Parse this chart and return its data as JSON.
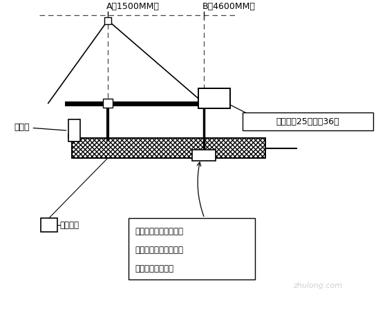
{
  "bg_color": "#ffffff",
  "title_A": "A（1500MM）",
  "title_B": "B（4600MM）",
  "label_nver": "女儿墙",
  "label_motor": "电动吸篹",
  "label_weight": "配重每块25公斤全36块",
  "label_note_line1": "前、后支架底部垒一定",
  "label_note_line2": "厚度和宽度的木板增加",
  "label_note_line3": "受力面积来分散力",
  "figure_size": [
    5.6,
    4.55
  ],
  "dpi": 100
}
